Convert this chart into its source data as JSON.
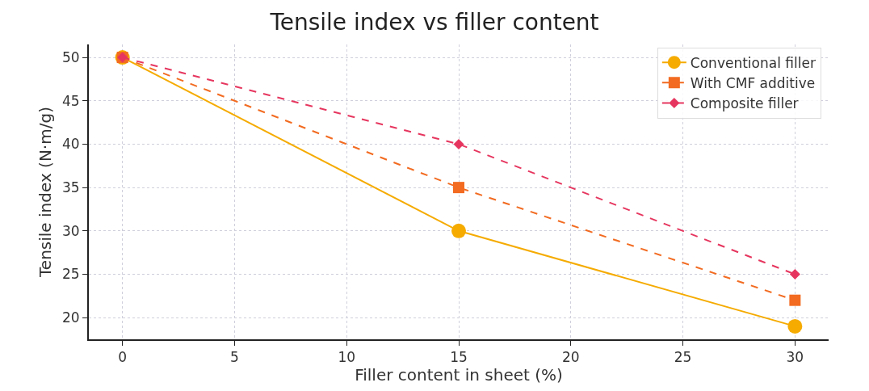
{
  "chart_data": {
    "type": "line",
    "title": "Tensile index vs filler content",
    "xlabel": "Filler content in sheet (%)",
    "ylabel": "Tensile index (N·m/g)",
    "x": [
      0,
      15,
      30
    ],
    "series": [
      {
        "name": "Conventional filler",
        "color": "#f5ab00",
        "values": [
          50,
          30,
          19
        ],
        "marker": "circle",
        "line_style": "solid"
      },
      {
        "name": "With CMF additive",
        "color": "#f26b21",
        "values": [
          50,
          35,
          22
        ],
        "marker": "square",
        "line_style": "dashed"
      },
      {
        "name": "Composite filler",
        "color": "#e6365f",
        "values": [
          50,
          40,
          25
        ],
        "marker": "diamond",
        "line_style": "dashed"
      }
    ],
    "xlim": [
      -1.5,
      31.5
    ],
    "xticks": [
      0,
      5,
      10,
      15,
      20,
      25,
      30
    ],
    "ylim": [
      17.5,
      51.5
    ],
    "yticks": [
      20,
      25,
      30,
      35,
      40,
      45,
      50
    ],
    "grid": true,
    "legend": "top right"
  }
}
